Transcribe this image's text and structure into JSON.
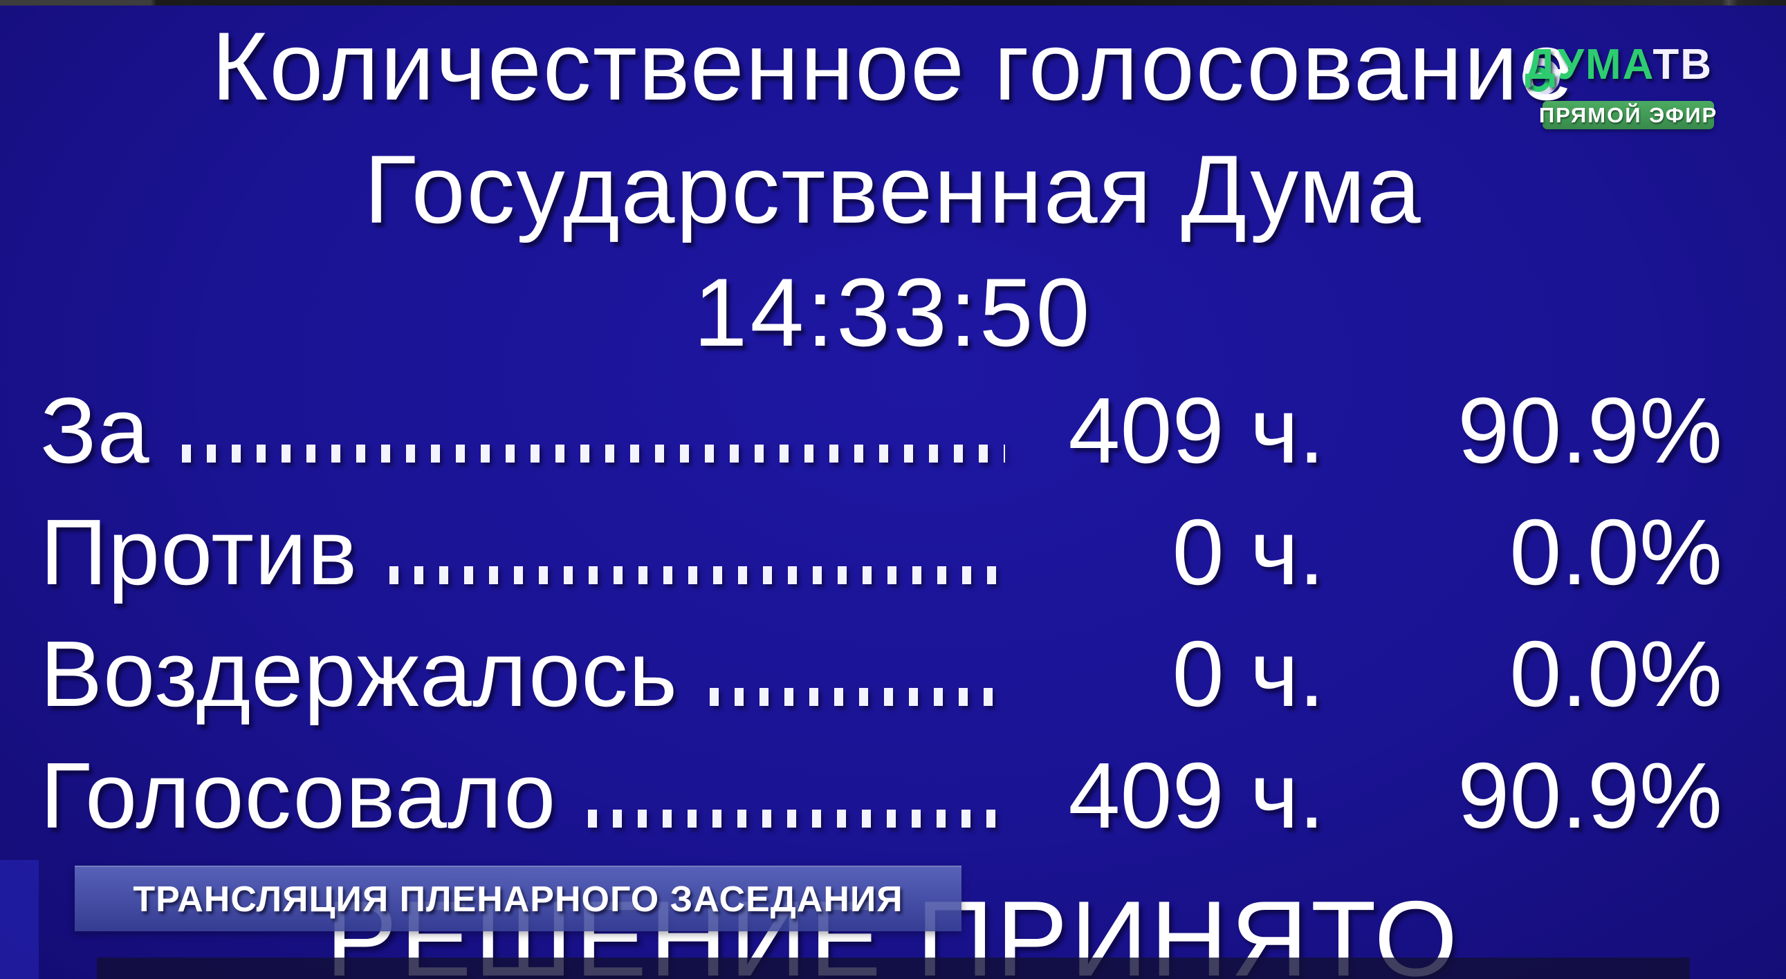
{
  "screen": {
    "vote_type_title": "Количественное голосование",
    "chamber": "Государственная Дума",
    "time": "14:33:50",
    "rows": [
      {
        "label": "За",
        "votes": "409 ч.",
        "percent": "90.9%"
      },
      {
        "label": "Против",
        "votes": "0 ч.",
        "percent": "0.0%"
      },
      {
        "label": "Воздержалось",
        "votes": "0 ч.",
        "percent": "0.0%"
      },
      {
        "label": "Голосовало",
        "votes": "409 ч.",
        "percent": "90.9%"
      }
    ],
    "decision": "РЕШЕНИЕ ПРИНЯТО"
  },
  "broadcast": {
    "banner": "ТРАНСЛЯЦИЯ ПЛЕНАРНОГО ЗАСЕДАНИЯ",
    "logo": {
      "duma": "ДУМА",
      "tv": "ТВ"
    },
    "live_badge": "ПРЯМОЙ ЭФИР"
  },
  "colors": {
    "background": "#1a1392",
    "logo_green": "#2ecc71",
    "badge_green": "#409a54",
    "banner_blue": "#4a54a0",
    "bottom_bar": "#12103a",
    "text": "#ffffff"
  }
}
